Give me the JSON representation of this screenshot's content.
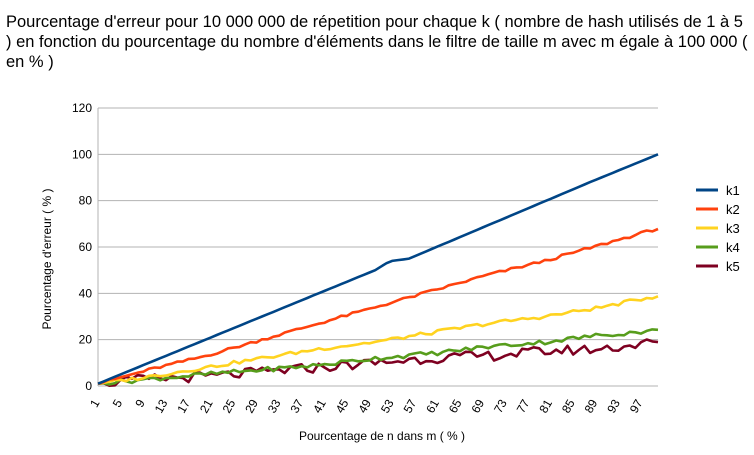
{
  "chart_data": {
    "type": "line",
    "title": "Pourcentage d'erreur pour 10 000 000 de répetition pour chaque k ( nombre de hash utilisés  de 1 à 5 ) en fonction du pourcentage du nombre d'éléments dans le filtre de taille m avec m égale à 100 000 ( en % )",
    "xlabel": "Pourcentage de n dans m ( % )",
    "ylabel": "Pourcentage d'erreur ( % )",
    "x_start": 1,
    "x_end": 100,
    "x_tick_labels": [
      "1",
      "5",
      "9",
      "13",
      "17",
      "21",
      "25",
      "29",
      "33",
      "37",
      "41",
      "45",
      "49",
      "53",
      "57",
      "61",
      "65",
      "69",
      "73",
      "77",
      "81",
      "85",
      "89",
      "93",
      "97"
    ],
    "ylim": [
      0,
      120
    ],
    "y_ticks": [
      0,
      20,
      40,
      60,
      80,
      100,
      120
    ],
    "grid": "horizontal",
    "legend_position": "right",
    "series": [
      {
        "name": "k1",
        "color": "#004586",
        "anchors": [
          [
            1,
            1
          ],
          [
            50,
            50
          ],
          [
            52,
            53
          ],
          [
            53,
            54
          ],
          [
            56,
            55
          ],
          [
            88,
            88
          ],
          [
            89,
            89
          ],
          [
            100,
            100
          ]
        ],
        "noise": 0
      },
      {
        "name": "k2",
        "color": "#ff420e",
        "anchors": [
          [
            1,
            1
          ],
          [
            10,
            7
          ],
          [
            20,
            13
          ],
          [
            30,
            20
          ],
          [
            40,
            27
          ],
          [
            50,
            34
          ],
          [
            60,
            41
          ],
          [
            70,
            48
          ],
          [
            80,
            54
          ],
          [
            90,
            61
          ],
          [
            100,
            68
          ]
        ],
        "noise": 0.6
      },
      {
        "name": "k3",
        "color": "#ffd320",
        "anchors": [
          [
            1,
            1
          ],
          [
            10,
            4
          ],
          [
            20,
            8
          ],
          [
            30,
            12
          ],
          [
            40,
            16
          ],
          [
            50,
            19
          ],
          [
            60,
            23
          ],
          [
            70,
            27
          ],
          [
            80,
            30
          ],
          [
            90,
            34
          ],
          [
            100,
            39
          ]
        ],
        "noise": 0.8
      },
      {
        "name": "k4",
        "color": "#579d1c",
        "anchors": [
          [
            1,
            1
          ],
          [
            10,
            3
          ],
          [
            20,
            5
          ],
          [
            30,
            7
          ],
          [
            40,
            9
          ],
          [
            50,
            12
          ],
          [
            60,
            14
          ],
          [
            70,
            17
          ],
          [
            80,
            19
          ],
          [
            90,
            22
          ],
          [
            100,
            24
          ]
        ],
        "noise": 1.0
      },
      {
        "name": "k5",
        "color": "#7e0021",
        "anchors": [
          [
            1,
            1
          ],
          [
            10,
            3
          ],
          [
            20,
            4
          ],
          [
            30,
            6
          ],
          [
            40,
            8
          ],
          [
            50,
            10
          ],
          [
            60,
            12
          ],
          [
            70,
            13
          ],
          [
            80,
            15
          ],
          [
            90,
            16
          ],
          [
            100,
            19
          ]
        ],
        "noise": 2.2
      }
    ]
  }
}
